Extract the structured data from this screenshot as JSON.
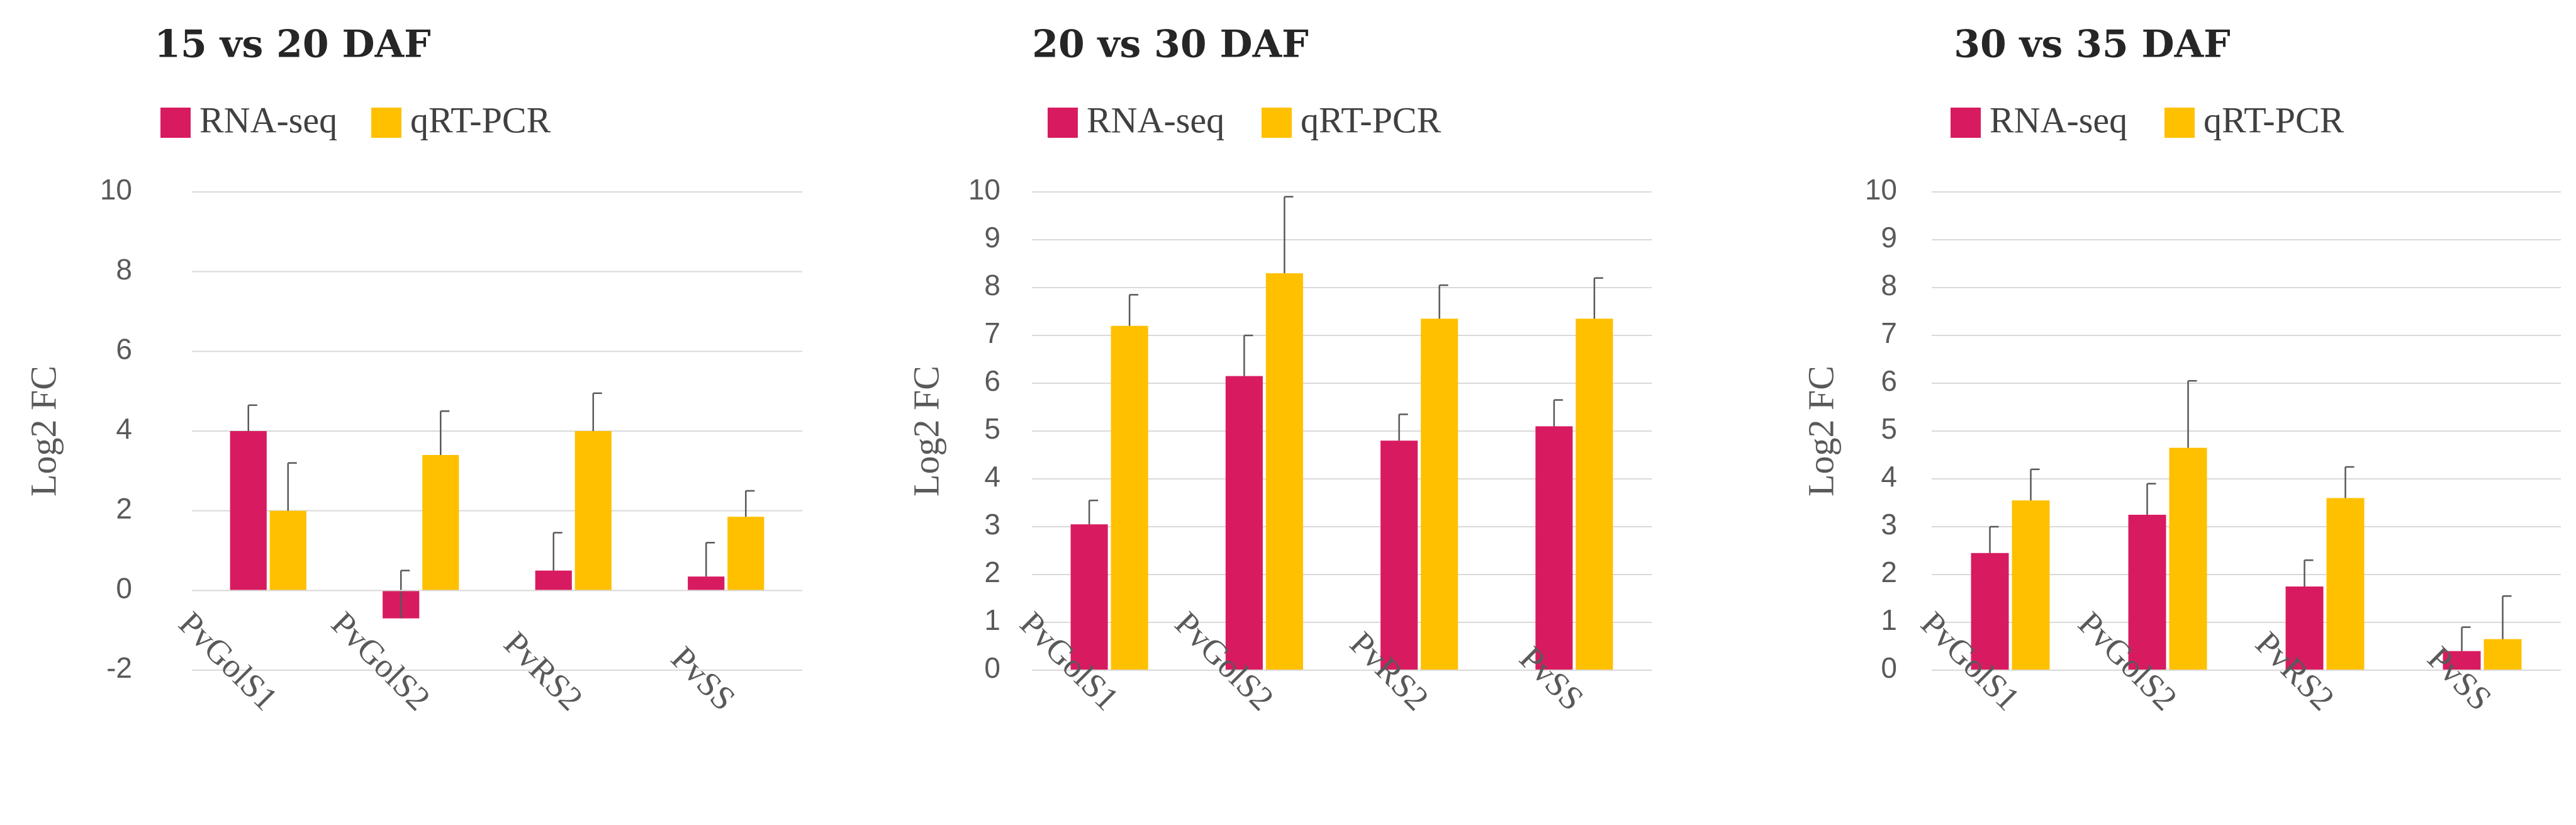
{
  "chart_data": [
    {
      "type": "bar",
      "title": "15 vs 20 DAF",
      "xlabel": "",
      "ylabel": "Log2 FC",
      "categories": [
        "PvGolS1",
        "PvGolS2",
        "PvRS2",
        "PvSS"
      ],
      "ylim": [
        -2,
        10
      ],
      "yticks": [
        -2,
        0,
        2,
        4,
        6,
        8,
        10
      ],
      "legend": "top",
      "series": [
        {
          "name": "RNA-seq",
          "color": "#d81b60",
          "values": [
            4.0,
            -0.7,
            0.5,
            0.35
          ],
          "errors": [
            0.65,
            1.2,
            0.95,
            0.85
          ]
        },
        {
          "name": "qRT-PCR",
          "color": "#ffc000",
          "values": [
            2.0,
            3.4,
            4.0,
            1.85
          ],
          "errors": [
            1.2,
            1.1,
            0.95,
            0.65
          ]
        }
      ]
    },
    {
      "type": "bar",
      "title": "20 vs 30 DAF",
      "xlabel": "",
      "ylabel": "Log2 FC",
      "categories": [
        "PvGolS1",
        "PvGolS2",
        "PvRS2",
        "PvSS"
      ],
      "ylim": [
        0,
        10
      ],
      "yticks": [
        0,
        1,
        2,
        3,
        4,
        5,
        6,
        7,
        8,
        9,
        10
      ],
      "legend": "top",
      "series": [
        {
          "name": "RNA-seq",
          "color": "#d81b60",
          "values": [
            3.05,
            6.15,
            4.8,
            5.1
          ],
          "errors": [
            0.5,
            0.85,
            0.55,
            0.55
          ]
        },
        {
          "name": "qRT-PCR",
          "color": "#ffc000",
          "values": [
            7.2,
            8.3,
            7.35,
            7.35
          ],
          "errors": [
            0.65,
            1.6,
            0.7,
            0.85
          ]
        }
      ]
    },
    {
      "type": "bar",
      "title": "30 vs 35 DAF",
      "xlabel": "",
      "ylabel": "Log2 FC",
      "categories": [
        "PvGolS1",
        "PvGolS2",
        "PvRS2",
        "PvSS"
      ],
      "ylim": [
        0,
        10
      ],
      "yticks": [
        0,
        1,
        2,
        3,
        4,
        5,
        6,
        7,
        8,
        9,
        10
      ],
      "legend": "top",
      "series": [
        {
          "name": "RNA-seq",
          "color": "#d81b60",
          "values": [
            2.45,
            3.25,
            1.75,
            0.4
          ],
          "errors": [
            0.55,
            0.65,
            0.55,
            0.5
          ]
        },
        {
          "name": "qRT-PCR",
          "color": "#ffc000",
          "values": [
            3.55,
            4.65,
            3.6,
            0.65
          ],
          "errors": [
            0.65,
            1.4,
            0.65,
            0.9
          ]
        }
      ]
    }
  ]
}
